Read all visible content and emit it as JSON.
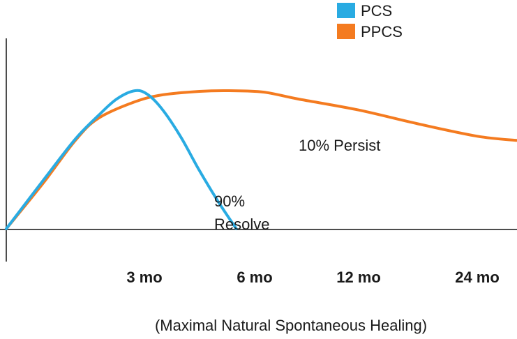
{
  "chart_data": {
    "type": "line",
    "title": "",
    "xlabel": "(Maximal Natural Spontaneous Healing)",
    "ylabel": "",
    "grid": false,
    "legend_position": "top-right",
    "x_ticks": [
      {
        "label": "3 mo",
        "x": 3
      },
      {
        "label": "6 mo",
        "x": 6
      },
      {
        "label": "12 mo",
        "x": 12
      },
      {
        "label": "24 mo",
        "x": 24
      }
    ],
    "series": [
      {
        "name": "PCS",
        "color": "#29abe2",
        "points": [
          [
            0,
            0
          ],
          [
            0.8,
            0.35
          ],
          [
            1.5,
            0.65
          ],
          [
            2.0,
            0.82
          ],
          [
            2.4,
            0.94
          ],
          [
            2.8,
            1.0
          ],
          [
            3.1,
            0.97
          ],
          [
            3.5,
            0.86
          ],
          [
            4.0,
            0.66
          ],
          [
            4.5,
            0.42
          ],
          [
            5.0,
            0.2
          ],
          [
            5.5,
            0.0
          ]
        ]
      },
      {
        "name": "PPCS",
        "color": "#f47b20",
        "points": [
          [
            0,
            0
          ],
          [
            0.8,
            0.33
          ],
          [
            1.5,
            0.64
          ],
          [
            2.0,
            0.8
          ],
          [
            2.8,
            0.92
          ],
          [
            3.5,
            0.97
          ],
          [
            4.5,
            0.995
          ],
          [
            5.3,
            1.0
          ],
          [
            6.5,
            0.99
          ],
          [
            8.5,
            0.94
          ],
          [
            12,
            0.86
          ],
          [
            18,
            0.76
          ],
          [
            24,
            0.67
          ],
          [
            26,
            0.64
          ]
        ]
      }
    ],
    "annotations": [
      {
        "name": "resolve",
        "lines": [
          "90%",
          "Resolve"
        ]
      },
      {
        "name": "persist",
        "lines": [
          "10% Persist"
        ]
      }
    ]
  }
}
